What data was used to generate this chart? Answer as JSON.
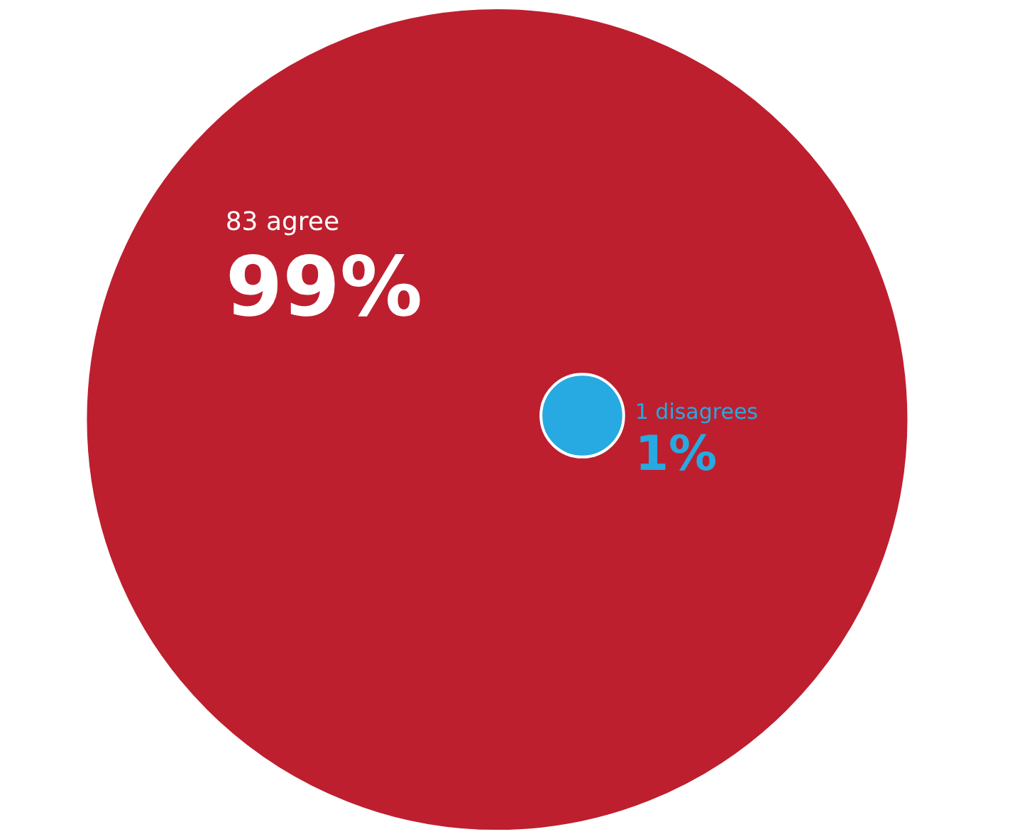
{
  "chart_data": {
    "type": "other",
    "categories": [
      "83 agree",
      "1 disagrees"
    ],
    "values": [
      99,
      1
    ],
    "value_labels": [
      "99%",
      "1%"
    ],
    "colors": [
      "#bd1f2f",
      "#27a9e1"
    ]
  }
}
